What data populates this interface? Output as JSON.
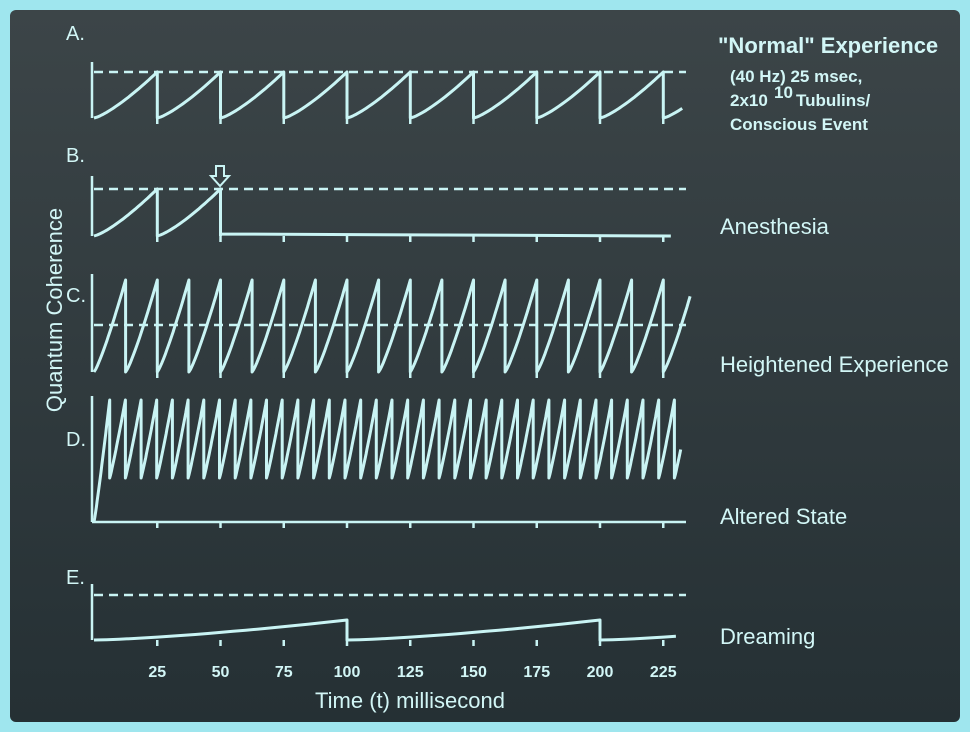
{
  "y_axis_label": "Quantum Coherence",
  "x_axis_title": "Time (t) millisecond",
  "x_ticks": [
    "25",
    "50",
    "75",
    "100",
    "125",
    "150",
    "175",
    "200",
    "225"
  ],
  "panels": [
    {
      "letter": "A.",
      "title": "\"Normal\" Experience",
      "lines": [
        "(40 Hz) 25 msec,"
      ],
      "tubulins": {
        "base": "2x10",
        "exponent": "10",
        "rest": "Tubulins/"
      },
      "last": "Conscious Event"
    },
    {
      "letter": "B.",
      "label": "Anesthesia"
    },
    {
      "letter": "C.",
      "label": "Heightened Experience"
    },
    {
      "letter": "D.",
      "label": "Altered State"
    },
    {
      "letter": "E.",
      "label": "Dreaming"
    }
  ]
}
